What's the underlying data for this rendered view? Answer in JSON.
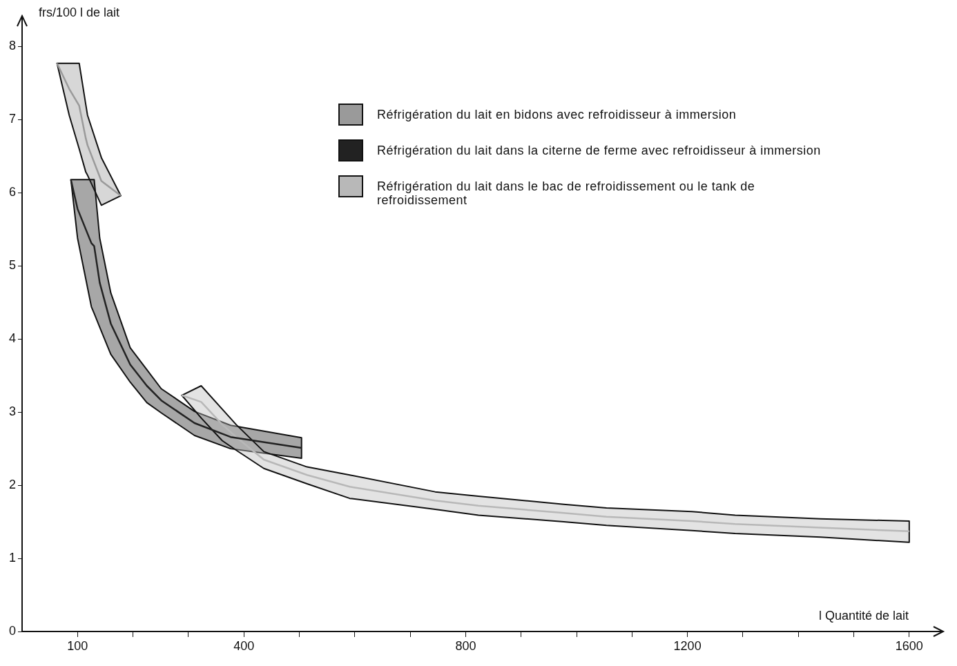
{
  "chart_data": {
    "type": "line",
    "xlabel": "l Quantité de lait",
    "ylabel": "frs/100 l de lait",
    "xlim": [
      0,
      1660
    ],
    "ylim": [
      0,
      8.4
    ],
    "xticks": [
      100,
      {
        "value": 200,
        "label": null
      },
      {
        "value": 300,
        "label": null
      },
      400,
      {
        "value": 500,
        "label": null
      },
      {
        "value": 600,
        "label": null
      },
      {
        "value": 700,
        "label": null
      },
      800,
      {
        "value": 900,
        "label": null
      },
      {
        "value": 1000,
        "label": null
      },
      {
        "value": 1100,
        "label": null
      },
      1200,
      {
        "value": 1300,
        "label": null
      },
      {
        "value": 1400,
        "label": null
      },
      {
        "value": 1500,
        "label": null
      },
      1600
    ],
    "yticks": [
      0,
      1,
      2,
      3,
      4,
      5,
      6,
      7,
      8
    ],
    "grid": false,
    "legend": "top right",
    "series": [
      {
        "name": "Réfrigération du lait en bidons avec refroidisseur à immersion",
        "color": "#9a9a9a",
        "x": [
          63,
          85,
          103,
          115,
          118,
          143,
          178
        ],
        "lower": [
          7.77,
          7.06,
          6.6,
          6.28,
          6.24,
          5.83,
          5.96
        ],
        "upper": [
          7.77,
          7.77,
          7.77,
          7.2,
          7.06,
          6.48,
          5.96
        ],
        "values": [
          7.77,
          7.42,
          7.19,
          6.74,
          6.65,
          6.16,
          5.96
        ]
      },
      {
        "name": "Réfrigération du lait dans la citerne de ferme avec refroidisseur à immersion",
        "color": "#222222",
        "x": [
          88,
          100,
          125,
          130,
          140,
          160,
          195,
          225,
          251,
          311,
          376,
          504
        ],
        "lower": [
          6.18,
          5.38,
          4.44,
          4.35,
          4.16,
          3.79,
          3.41,
          3.13,
          2.99,
          2.68,
          2.5,
          2.37
        ],
        "upper": [
          6.18,
          6.18,
          6.18,
          6.18,
          5.38,
          4.63,
          3.88,
          3.58,
          3.32,
          3.01,
          2.82,
          2.65
        ],
        "values": [
          6.18,
          5.78,
          5.31,
          5.27,
          4.77,
          4.21,
          3.65,
          3.36,
          3.16,
          2.85,
          2.66,
          2.51
        ]
      },
      {
        "name": "Réfrigération du lait dans le bac de refroidissement ou le tank de refroidissement",
        "color": "#b8b8b8",
        "x": [
          288,
          323,
          361,
          386,
          436,
          514,
          591,
          745,
          823,
          977,
          1054,
          1208,
          1286,
          1440,
          1600
        ],
        "lower": [
          3.23,
          2.92,
          2.61,
          2.48,
          2.23,
          2.02,
          1.82,
          1.67,
          1.59,
          1.5,
          1.45,
          1.38,
          1.34,
          1.29,
          1.22
        ],
        "upper": [
          3.23,
          3.36,
          3.04,
          2.83,
          2.46,
          2.25,
          2.14,
          1.91,
          1.85,
          1.74,
          1.69,
          1.64,
          1.59,
          1.54,
          1.51
        ],
        "values": [
          3.23,
          3.14,
          2.83,
          2.66,
          2.35,
          2.14,
          1.98,
          1.79,
          1.72,
          1.62,
          1.57,
          1.51,
          1.47,
          1.42,
          1.37
        ]
      }
    ]
  }
}
